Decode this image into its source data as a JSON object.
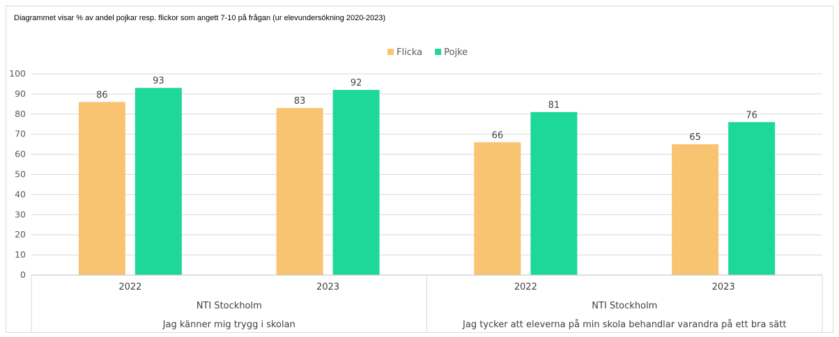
{
  "note": "Diagrammet visar % av andel pojkar resp. flickor som angett 7-10 på frågan (ur elevundersökning 2020-2023)",
  "chart_data": {
    "type": "bar",
    "categories": [
      "2022",
      "2023",
      "2022",
      "2023"
    ],
    "category_levels": [
      {
        "labels": [
          "2022",
          "2023",
          "2022",
          "2023"
        ]
      },
      {
        "labels": [
          "NTI Stockholm",
          "NTI Stockholm"
        ]
      },
      {
        "labels": [
          "Jag känner mig trygg i skolan",
          "Jag tycker att eleverna på min skola behandlar varandra på ett bra sätt"
        ]
      }
    ],
    "series": [
      {
        "name": "Flicka",
        "color": "#F8C471",
        "values": [
          86,
          83,
          66,
          65
        ]
      },
      {
        "name": "Pojke",
        "color": "#1ED89A",
        "values": [
          93,
          92,
          81,
          76
        ]
      }
    ],
    "ylim": [
      0,
      100
    ],
    "yticks": [
      0,
      10,
      20,
      30,
      40,
      50,
      60,
      70,
      80,
      90,
      100
    ],
    "grid": true,
    "legend": "top-center",
    "data_labels": true
  }
}
